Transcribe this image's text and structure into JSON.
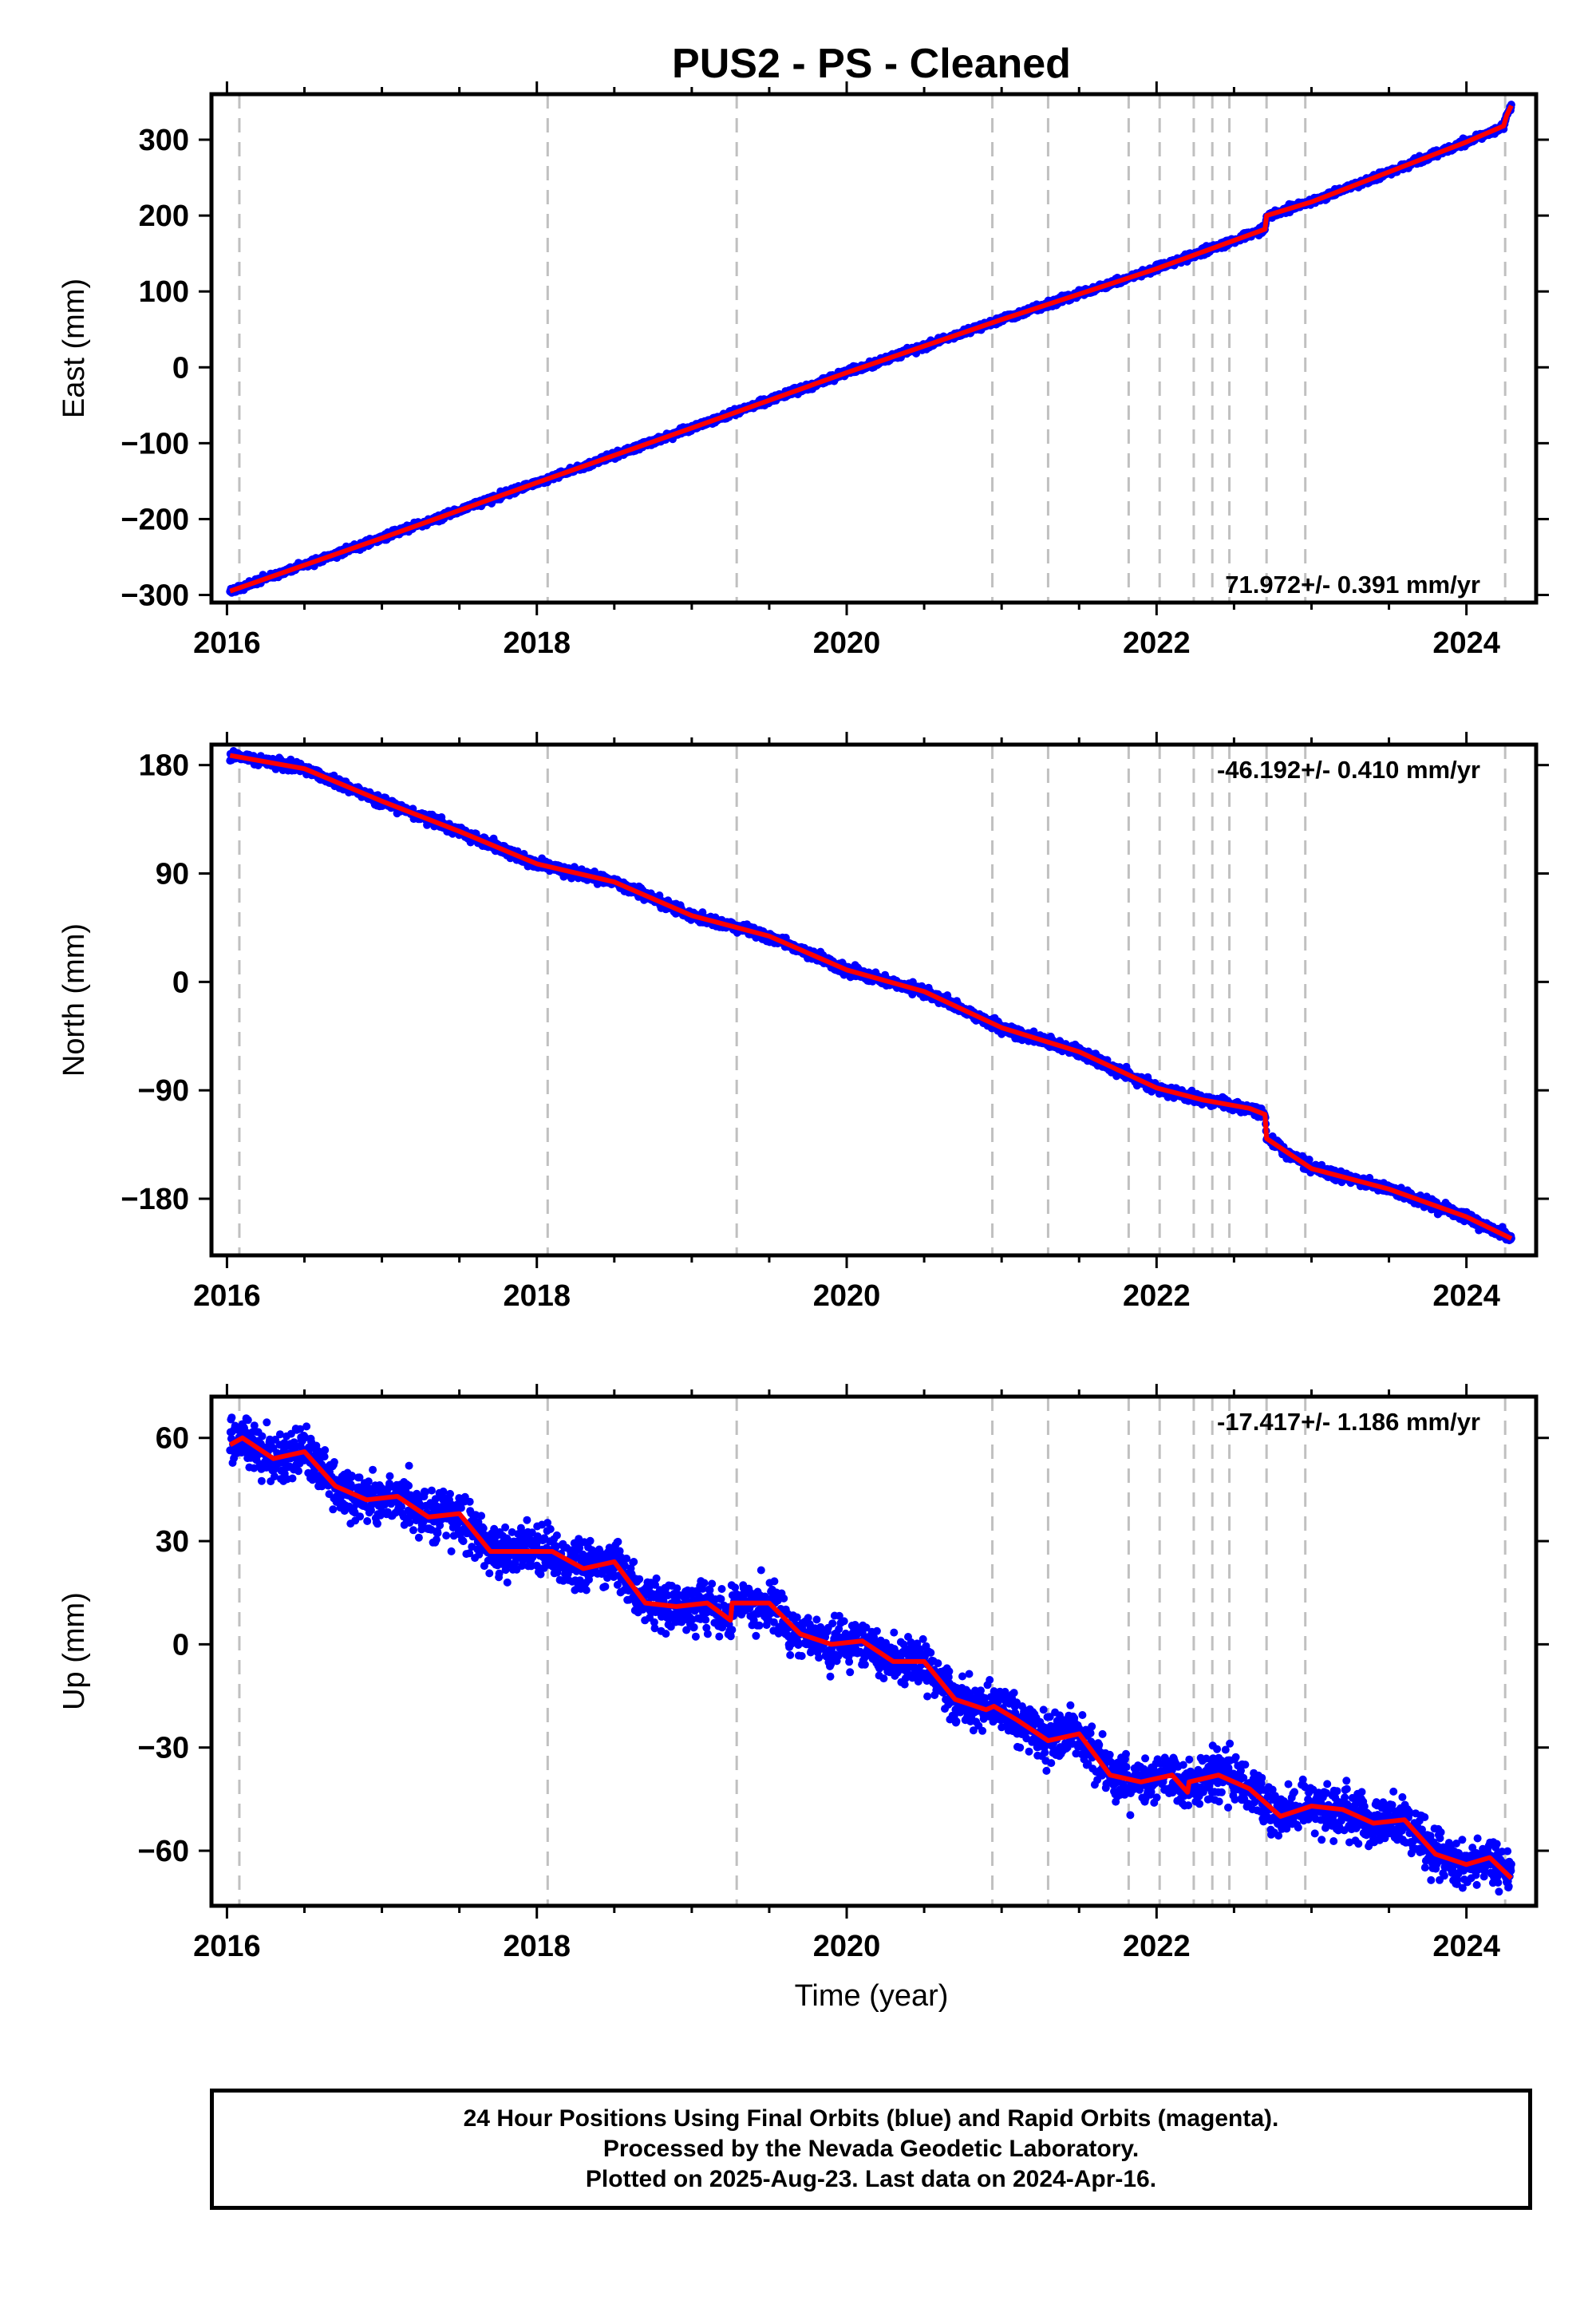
{
  "title": "PUS2  - PS - Cleaned",
  "colors": {
    "points": "#0000ff",
    "fit": "#ff0000",
    "events": "#c0c0c0",
    "axis": "#000000"
  },
  "chart_data": [
    {
      "type": "scatter",
      "id": "east",
      "ylabel": "East (mm)",
      "xlabel": "",
      "xlim": [
        2015.9,
        2024.45
      ],
      "ylim": [
        -310,
        360
      ],
      "yticks": [
        -300,
        -200,
        -100,
        0,
        100,
        200,
        300
      ],
      "xticks": [
        2016,
        2018,
        2020,
        2022,
        2024
      ],
      "xticklabels": [
        "2016",
        "2018",
        "2020",
        "2022",
        "2024"
      ],
      "rate_label": "71.972+/- 0.391 mm/yr",
      "rate_position": "bottom-right",
      "series": [
        {
          "kind": "points",
          "noise": 3
        },
        {
          "kind": "fit",
          "x": [
            2016.02,
            2017.0,
            2018.0,
            2019.0,
            2020.0,
            2021.0,
            2022.0,
            2022.7,
            2022.71,
            2023.0,
            2024.0,
            2024.24,
            2024.26,
            2024.29
          ],
          "y": [
            -295,
            -225,
            -152,
            -80,
            -7,
            63,
            130,
            182,
            200,
            218,
            297,
            318,
            332,
            345
          ]
        }
      ]
    },
    {
      "type": "scatter",
      "id": "north",
      "ylabel": "North (mm)",
      "xlabel": "",
      "xlim": [
        2015.9,
        2024.45
      ],
      "ylim": [
        -227,
        197
      ],
      "yticks": [
        -180,
        -90,
        0,
        90,
        180
      ],
      "xticks": [
        2016,
        2018,
        2020,
        2022,
        2024
      ],
      "xticklabels": [
        "2016",
        "2018",
        "2020",
        "2022",
        "2024"
      ],
      "rate_label": "-46.192+/- 0.410 mm/yr",
      "rate_position": "top-right",
      "series": [
        {
          "kind": "points",
          "noise": 3
        },
        {
          "kind": "fit",
          "x": [
            2016.02,
            2016.5,
            2017.0,
            2017.5,
            2018.0,
            2018.5,
            2019.0,
            2019.5,
            2020.0,
            2020.5,
            2021.0,
            2021.5,
            2022.0,
            2022.3,
            2022.6,
            2022.7,
            2022.71,
            2023.0,
            2023.5,
            2024.0,
            2024.29
          ],
          "y": [
            188,
            177,
            150,
            125,
            98,
            83,
            55,
            38,
            10,
            -8,
            -38,
            -58,
            -88,
            -98,
            -105,
            -110,
            -130,
            -155,
            -172,
            -195,
            -213
          ]
        }
      ]
    },
    {
      "type": "scatter",
      "id": "up",
      "ylabel": "Up (mm)",
      "xlabel": "Time (year)",
      "xlim": [
        2015.9,
        2024.45
      ],
      "ylim": [
        -76,
        72
      ],
      "yticks": [
        -60,
        -30,
        0,
        30,
        60
      ],
      "xticks": [
        2016,
        2018,
        2020,
        2022,
        2024
      ],
      "xticklabels": [
        "2016",
        "2018",
        "2020",
        "2022",
        "2024"
      ],
      "rate_label": "-17.417+/- 1.186 mm/yr",
      "rate_position": "top-right",
      "series": [
        {
          "kind": "points",
          "noise": 5
        },
        {
          "kind": "fit",
          "x": [
            2016.02,
            2016.1,
            2016.3,
            2016.5,
            2016.7,
            2016.9,
            2017.1,
            2017.3,
            2017.5,
            2017.7,
            2017.9,
            2018.1,
            2018.3,
            2018.5,
            2018.7,
            2018.9,
            2019.1,
            2019.25,
            2019.26,
            2019.5,
            2019.7,
            2019.9,
            2020.1,
            2020.3,
            2020.5,
            2020.7,
            2020.9,
            2020.95,
            2021.1,
            2021.3,
            2021.5,
            2021.7,
            2021.9,
            2022.1,
            2022.2,
            2022.21,
            2022.4,
            2022.6,
            2022.8,
            2023.0,
            2023.2,
            2023.4,
            2023.6,
            2023.8,
            2024.0,
            2024.15,
            2024.29
          ],
          "y": [
            58,
            60,
            54,
            56,
            46,
            42,
            43,
            37,
            38,
            27,
            27,
            27,
            22,
            24,
            12,
            11,
            12,
            7,
            12,
            12,
            3,
            0,
            1,
            -5,
            -5,
            -16,
            -19,
            -18,
            -22,
            -28,
            -26,
            -38,
            -40,
            -38,
            -43,
            -40,
            -38,
            -42,
            -50,
            -47,
            -48,
            -52,
            -51,
            -61,
            -64,
            -62,
            -68
          ]
        }
      ]
    }
  ],
  "events": [
    2016.08,
    2018.07,
    2019.29,
    2020.94,
    2021.3,
    2021.82,
    2022.02,
    2022.24,
    2022.36,
    2022.47,
    2022.71,
    2022.96,
    2024.25
  ],
  "footer": {
    "line1": "24 Hour Positions Using Final Orbits (blue) and Rapid Orbits (magenta).",
    "line2": "Processed by the Nevada Geodetic Laboratory.",
    "line3": "Plotted on 2025-Aug-23. Last data on 2024-Apr-16."
  }
}
